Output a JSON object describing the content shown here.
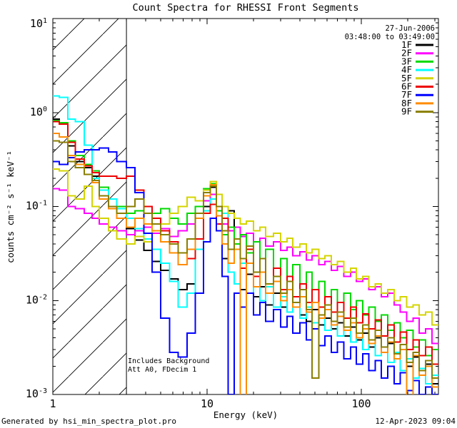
{
  "legend": {
    "date": "27-Jun-2006",
    "time_range": "03:48:00 to 03:49:00"
  },
  "annotations": {
    "line1": "Includes Background",
    "line2": "Att A0, FDecim 1"
  },
  "footer": {
    "left": "Generated by hsi_min_spectra_plot.pro",
    "right": "12-Apr-2023 09:04"
  },
  "chart_data": {
    "type": "line",
    "subtype": "step-spectra",
    "title": "Count Spectra for RHESSI Front Segments",
    "xlabel": "Energy (keV)",
    "ylabel": "counts cm⁻² s⁻¹ keV⁻¹",
    "x_scale": "log",
    "y_scale": "log",
    "xlim": [
      1,
      316
    ],
    "ylim": [
      0.001,
      10
    ],
    "x_major_ticks": [
      1,
      10,
      100
    ],
    "y_major_tick_exponents": [
      1,
      0,
      -1,
      -2,
      -3
    ],
    "grid": false,
    "legend_position": "top-right-inside",
    "hatch_region_kev": [
      1.0,
      3.0
    ],
    "bin_edges_kev": [
      1.0,
      1.1,
      1.25,
      1.4,
      1.6,
      1.8,
      2.0,
      2.3,
      2.6,
      3.0,
      3.4,
      3.9,
      4.4,
      5.0,
      5.7,
      6.5,
      7.4,
      8.4,
      9.5,
      10.5,
      11.5,
      12.5,
      13.7,
      15.0,
      16.4,
      18.0,
      20.0,
      22.0,
      24.0,
      27.0,
      30.0,
      33.0,
      36.0,
      40.0,
      44.0,
      48.0,
      53.0,
      58.0,
      64.0,
      70.0,
      77.0,
      85.0,
      93.0,
      102.0,
      112.0,
      123.0,
      135.0,
      148.0,
      163.0,
      179.0,
      197.0,
      216.0,
      237.0,
      261.0,
      287.0,
      316.0
    ],
    "series": [
      {
        "name": "1F",
        "color": "#000000",
        "values": [
          0.85,
          0.78,
          0.44,
          0.3,
          0.26,
          0.21,
          0.13,
          0.1,
          0.085,
          0.058,
          0.044,
          0.034,
          0.026,
          0.021,
          0.017,
          0.013,
          0.015,
          0.035,
          0.1,
          0.16,
          0.055,
          0.028,
          0.09,
          0.035,
          0.013,
          0.019,
          0.011,
          0.014,
          0.009,
          0.012,
          0.0085,
          0.0075,
          0.0095,
          0.007,
          0.006,
          0.008,
          0.0055,
          0.0065,
          0.005,
          0.0058,
          0.0042,
          0.0052,
          0.0038,
          0.0045,
          0.0032,
          0.004,
          0.0028,
          0.0035,
          0.0024,
          0.003,
          0.002,
          0.0025,
          0.0016,
          0.0021,
          0.0013,
          0.0013
        ]
      },
      {
        "name": "2F",
        "color": "#ff00ff",
        "values": [
          0.155,
          0.15,
          0.1,
          0.095,
          0.085,
          0.075,
          0.065,
          0.06,
          0.055,
          0.05,
          0.055,
          0.06,
          0.052,
          0.058,
          0.048,
          0.055,
          0.065,
          0.085,
          0.115,
          0.135,
          0.1,
          0.065,
          0.055,
          0.06,
          0.048,
          0.052,
          0.042,
          0.046,
          0.038,
          0.042,
          0.034,
          0.037,
          0.03,
          0.033,
          0.027,
          0.03,
          0.024,
          0.026,
          0.021,
          0.023,
          0.018,
          0.02,
          0.016,
          0.017,
          0.013,
          0.014,
          0.011,
          0.012,
          0.009,
          0.0075,
          0.006,
          0.0065,
          0.0045,
          0.005,
          0.0035,
          0.0035
        ]
      },
      {
        "name": "3F",
        "color": "#00d900",
        "values": [
          0.82,
          0.78,
          0.5,
          0.35,
          0.28,
          0.24,
          0.16,
          0.12,
          0.1,
          0.085,
          0.09,
          0.1,
          0.085,
          0.095,
          0.075,
          0.065,
          0.085,
          0.1,
          0.155,
          0.175,
          0.09,
          0.05,
          0.06,
          0.04,
          0.05,
          0.032,
          0.042,
          0.028,
          0.035,
          0.022,
          0.028,
          0.018,
          0.024,
          0.015,
          0.02,
          0.013,
          0.016,
          0.011,
          0.013,
          0.0095,
          0.012,
          0.008,
          0.01,
          0.007,
          0.0085,
          0.006,
          0.007,
          0.0048,
          0.0058,
          0.004,
          0.0048,
          0.0032,
          0.0038,
          0.0026,
          0.003,
          0.003
        ]
      },
      {
        "name": "4F",
        "color": "#00ffff",
        "values": [
          1.5,
          1.45,
          0.85,
          0.8,
          0.45,
          0.2,
          0.15,
          0.12,
          0.095,
          0.075,
          0.058,
          0.045,
          0.035,
          0.025,
          0.016,
          0.0085,
          0.012,
          0.035,
          0.09,
          0.12,
          0.1,
          0.085,
          0.02,
          0.015,
          0.025,
          0.012,
          0.018,
          0.01,
          0.014,
          0.0085,
          0.011,
          0.0075,
          0.0095,
          0.0065,
          0.0085,
          0.0058,
          0.007,
          0.0048,
          0.006,
          0.0042,
          0.0052,
          0.0036,
          0.0045,
          0.003,
          0.0038,
          0.0026,
          0.0032,
          0.0022,
          0.0028,
          0.0018,
          0.0024,
          0.0015,
          0.0019,
          0.0013,
          0.0016,
          0.0016
        ]
      },
      {
        "name": "5F",
        "color": "#d4d400",
        "values": [
          0.25,
          0.24,
          0.13,
          0.12,
          0.165,
          0.1,
          0.075,
          0.055,
          0.045,
          0.04,
          0.048,
          0.042,
          0.055,
          0.065,
          0.085,
          0.1,
          0.125,
          0.115,
          0.15,
          0.185,
          0.135,
          0.1,
          0.085,
          0.075,
          0.065,
          0.07,
          0.055,
          0.06,
          0.048,
          0.052,
          0.042,
          0.046,
          0.037,
          0.04,
          0.032,
          0.035,
          0.028,
          0.03,
          0.024,
          0.026,
          0.02,
          0.022,
          0.017,
          0.018,
          0.014,
          0.015,
          0.012,
          0.013,
          0.01,
          0.011,
          0.0085,
          0.009,
          0.007,
          0.0075,
          0.0055,
          0.0055
        ]
      },
      {
        "name": "6F",
        "color": "#ee0000",
        "values": [
          0.8,
          0.75,
          0.48,
          0.32,
          0.27,
          0.23,
          0.21,
          0.21,
          0.2,
          0.21,
          0.15,
          0.1,
          0.075,
          0.055,
          0.042,
          0.032,
          0.028,
          0.045,
          0.085,
          0.105,
          0.065,
          0.075,
          0.035,
          0.045,
          0.022,
          0.035,
          0.018,
          0.028,
          0.015,
          0.022,
          0.013,
          0.018,
          0.011,
          0.015,
          0.0095,
          0.013,
          0.0085,
          0.011,
          0.0075,
          0.0095,
          0.0065,
          0.0085,
          0.0058,
          0.0072,
          0.005,
          0.0062,
          0.0042,
          0.0055,
          0.0036,
          0.0046,
          0.003,
          0.0038,
          0.0026,
          0.0032,
          0.0021,
          0.0021
        ]
      },
      {
        "name": "7F",
        "color": "#0000ff",
        "values": [
          0.3,
          0.28,
          0.33,
          0.38,
          0.4,
          0.4,
          0.42,
          0.38,
          0.3,
          0.26,
          0.14,
          0.052,
          0.02,
          0.0065,
          0.0028,
          0.0025,
          0.0045,
          0.012,
          0.042,
          0.075,
          0.055,
          0.018,
          0.001,
          0.012,
          0.0085,
          0.012,
          0.007,
          0.0095,
          0.006,
          0.008,
          0.0052,
          0.0068,
          0.0045,
          0.0058,
          0.0038,
          0.005,
          0.0033,
          0.0042,
          0.0028,
          0.0036,
          0.0024,
          0.0032,
          0.0021,
          0.0027,
          0.0018,
          0.0023,
          0.0015,
          0.002,
          0.0013,
          0.0017,
          0.0011,
          0.0014,
          0.001,
          0.0012,
          0.001,
          0.001
        ]
      },
      {
        "name": "8F",
        "color": "#ff8c00",
        "values": [
          0.6,
          0.55,
          0.35,
          0.28,
          0.22,
          0.18,
          0.12,
          0.095,
          0.075,
          0.06,
          0.075,
          0.065,
          0.055,
          0.042,
          0.032,
          0.024,
          0.035,
          0.075,
          0.13,
          0.17,
          0.08,
          0.04,
          0.025,
          0.035,
          0.0008,
          0.025,
          0.014,
          0.02,
          0.012,
          0.016,
          0.01,
          0.013,
          0.0085,
          0.011,
          0.0075,
          0.0095,
          0.0065,
          0.008,
          0.0055,
          0.0068,
          0.0048,
          0.0058,
          0.004,
          0.005,
          0.0035,
          0.0042,
          0.0028,
          0.0036,
          0.0024,
          0.003,
          0.0008,
          0.0026,
          0.0016,
          0.002,
          0.0012,
          0.0012
        ]
      },
      {
        "name": "9F",
        "color": "#8a7e00",
        "values": [
          0.5,
          0.48,
          0.3,
          0.26,
          0.22,
          0.19,
          0.13,
          0.1,
          0.085,
          0.1,
          0.12,
          0.085,
          0.065,
          0.05,
          0.04,
          0.032,
          0.045,
          0.085,
          0.14,
          0.165,
          0.1,
          0.055,
          0.035,
          0.045,
          0.028,
          0.038,
          0.02,
          0.028,
          0.015,
          0.018,
          0.012,
          0.016,
          0.0095,
          0.013,
          0.008,
          0.0015,
          0.007,
          0.009,
          0.006,
          0.0075,
          0.0052,
          0.0065,
          0.0045,
          0.0055,
          0.0038,
          0.0048,
          0.0032,
          0.004,
          0.0027,
          0.0034,
          0.0022,
          0.0028,
          0.0018,
          0.0023,
          0.0015,
          0.0015
        ]
      }
    ]
  }
}
